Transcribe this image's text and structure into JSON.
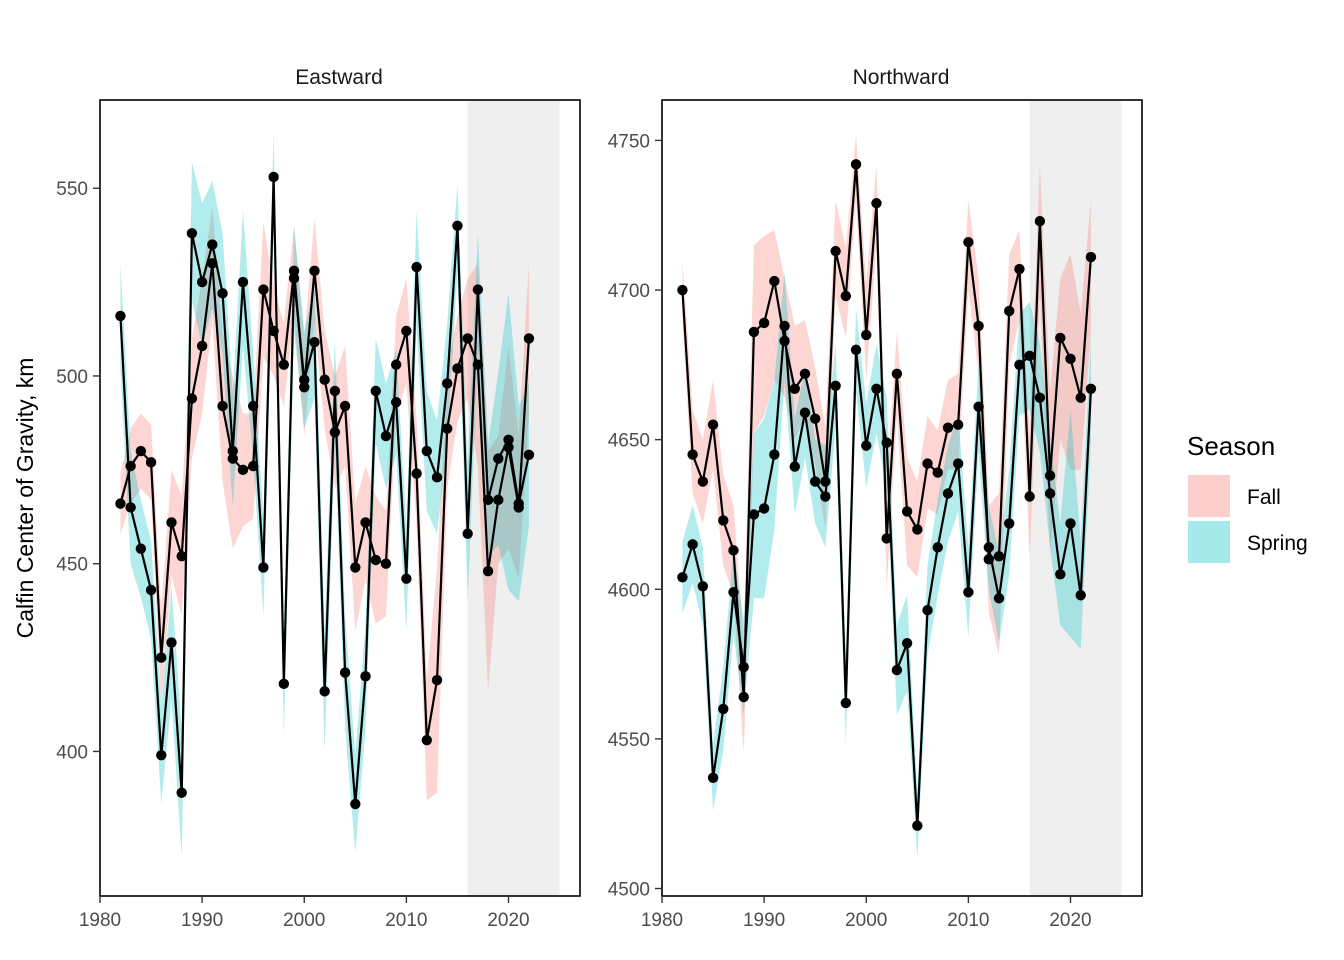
{
  "chart_data": {
    "type": "line",
    "ylabel": "Calfin Center of Gravity, km",
    "legend": {
      "title": "Season",
      "placement": "right",
      "entries": [
        {
          "name": "Fall",
          "color": "#F8766D"
        },
        {
          "name": "Spring",
          "color": "#00BFC4"
        }
      ]
    },
    "colors": {
      "fall": "#F8766D",
      "spring": "#00BFC4",
      "line": "#000000",
      "shade": "#EFEFEF"
    },
    "panels": [
      {
        "title": "Eastward",
        "xlim": [
          1980,
          2027
        ],
        "ylim": [
          361.5,
          573.5
        ],
        "xticks": [
          1980,
          1990,
          2000,
          2010,
          2020
        ],
        "yticks": [
          400,
          450,
          500,
          550
        ],
        "shade_range": [
          2016,
          2025
        ],
        "series": [
          {
            "name": "Fall",
            "x": [
              1982,
              1983,
              1984,
              1985,
              1986,
              1987,
              1988,
              1989,
              1990,
              1991,
              1992,
              1993,
              1994,
              1995,
              1996,
              1997,
              1998,
              1999,
              2000,
              2001,
              2002,
              2003,
              2004,
              2005,
              2006,
              2007,
              2008,
              2009,
              2010,
              2011,
              2012,
              2013,
              2014,
              2015,
              2016,
              2017,
              2018,
              2019,
              2020,
              2021,
              2022
            ],
            "y": [
              466,
              476,
              480,
              477,
              425,
              461,
              452,
              494,
              508,
              530,
              492,
              478,
              475,
              476,
              523,
              512,
              503,
              528,
              497,
              528,
              499,
              485,
              492,
              449,
              461,
              451,
              450,
              503,
              512,
              474,
              403,
              419,
              486,
              502,
              510,
              503,
              448,
              467,
              481,
              465,
              510
            ],
            "lower": [
              458,
              466,
              470,
              467,
              412,
              447,
              436,
              478,
              490,
              515,
              472,
              454,
              460,
              462,
              505,
              500,
              492,
              516,
              484,
              514,
              486,
              470,
              476,
              432,
              446,
              434,
              436,
              490,
              498,
              460,
              387,
              389,
              470,
              488,
              494,
              476,
              416,
              450,
              454,
              446,
              490
            ],
            "upper": [
              474,
              486,
              490,
              487,
              438,
              475,
              468,
              510,
              526,
              545,
              512,
              500,
              490,
              490,
              541,
              524,
              514,
              540,
              510,
              542,
              512,
              500,
              508,
              466,
              476,
              468,
              464,
              516,
              526,
              488,
              419,
              449,
              502,
              516,
              526,
              530,
              480,
              484,
              508,
              484,
              530
            ]
          },
          {
            "name": "Spring",
            "x": [
              1982,
              1983,
              1984,
              1985,
              1986,
              1987,
              1988,
              1989,
              1990,
              1991,
              1992,
              1993,
              1994,
              1995,
              1996,
              1997,
              1998,
              1999,
              2000,
              2001,
              2002,
              2003,
              2004,
              2005,
              2006,
              2007,
              2008,
              2009,
              2010,
              2011,
              2012,
              2013,
              2014,
              2015,
              2016,
              2017,
              2018,
              2019,
              2020,
              2021,
              2022
            ],
            "y": [
              516,
              465,
              454,
              443,
              399,
              429,
              389,
              538,
              525,
              535,
              522,
              480,
              525,
              492,
              449,
              553,
              418,
              526,
              499,
              509,
              416,
              496,
              421,
              386,
              420,
              496,
              484,
              493,
              446,
              529,
              480,
              473,
              498,
              540,
              458,
              523,
              467,
              478,
              483,
              466,
              479
            ],
            "lower": [
              502,
              450,
              441,
              430,
              386,
              414,
              372,
              520,
              508,
              518,
              506,
              465,
              508,
              478,
              436,
              540,
              404,
              512,
              486,
              494,
              400,
              482,
              406,
              373,
              406,
              482,
              470,
              479,
              432,
              514,
              464,
              458,
              482,
              528,
              440,
              508,
              452,
              455,
              443,
              440,
              460
            ],
            "upper": [
              530,
              480,
              467,
              456,
              412,
              444,
              406,
              557,
              546,
              552,
              538,
              495,
              544,
              506,
              462,
              565,
              432,
              540,
              512,
              524,
              432,
              510,
              436,
              399,
              434,
              510,
              498,
              507,
              460,
              544,
              496,
              488,
              514,
              551,
              476,
              538,
              482,
              501,
              522,
              492,
              498
            ]
          }
        ]
      },
      {
        "title": "Northward",
        "xlim": [
          1980,
          2027
        ],
        "ylim": [
          4497.5,
          4763.5
        ],
        "xticks": [
          1980,
          1990,
          2000,
          2010,
          2020
        ],
        "yticks": [
          4500,
          4550,
          4600,
          4650,
          4700,
          4750
        ],
        "shade_range": [
          2016,
          2025
        ],
        "series": [
          {
            "name": "Fall",
            "x": [
              1982,
              1983,
              1984,
              1985,
              1986,
              1987,
              1988,
              1989,
              1990,
              1991,
              1992,
              1993,
              1994,
              1995,
              1996,
              1997,
              1998,
              1999,
              2000,
              2001,
              2002,
              2003,
              2004,
              2005,
              2006,
              2007,
              2008,
              2009,
              2010,
              2011,
              2012,
              2013,
              2014,
              2015,
              2016,
              2017,
              2018,
              2019,
              2020,
              2021,
              2022
            ],
            "y": [
              4700,
              4645,
              4636,
              4655,
              4623,
              4613,
              4564,
              4686,
              4689,
              4703,
              4683,
              4667,
              4672,
              4657,
              4636,
              4713,
              4698,
              4742,
              4685,
              4729,
              4617,
              4672,
              4626,
              4620,
              4642,
              4639,
              4654,
              4655,
              4716,
              4688,
              4610,
              4611,
              4693,
              4707,
              4631,
              4723,
              4638,
              4684,
              4677,
              4664,
              4711
            ],
            "lower": [
              4690,
              4632,
              4622,
              4640,
              4608,
              4598,
              4545,
              4652,
              4658,
              4670,
              4664,
              4650,
              4658,
              4642,
              4620,
              4698,
              4684,
              4730,
              4670,
              4714,
              4600,
              4658,
              4608,
              4604,
              4627,
              4625,
              4640,
              4640,
              4700,
              4672,
              4592,
              4578,
              4675,
              4690,
              4610,
              4698,
              4612,
              4650,
              4640,
              4640,
              4686
            ],
            "upper": [
              4710,
              4660,
              4650,
              4670,
              4638,
              4628,
              4583,
              4715,
              4718,
              4720,
              4704,
              4688,
              4690,
              4674,
              4654,
              4730,
              4714,
              4752,
              4702,
              4742,
              4636,
              4686,
              4644,
              4636,
              4658,
              4653,
              4670,
              4672,
              4730,
              4704,
              4628,
              4632,
              4712,
              4720,
              4652,
              4742,
              4666,
              4704,
              4712,
              4692,
              4730
            ]
          },
          {
            "name": "Spring",
            "x": [
              1982,
              1983,
              1984,
              1985,
              1986,
              1987,
              1988,
              1989,
              1990,
              1991,
              1992,
              1993,
              1994,
              1995,
              1996,
              1997,
              1998,
              1999,
              2000,
              2001,
              2002,
              2003,
              2004,
              2005,
              2006,
              2007,
              2008,
              2009,
              2010,
              2011,
              2012,
              2013,
              2014,
              2015,
              2016,
              2017,
              2018,
              2019,
              2020,
              2021,
              2022
            ],
            "y": [
              4604,
              4615,
              4601,
              4537,
              4560,
              4599,
              4574,
              4625,
              4627,
              4645,
              4688,
              4641,
              4659,
              4636,
              4631,
              4668,
              4562,
              4680,
              4648,
              4667,
              4649,
              4573,
              4582,
              4521,
              4593,
              4614,
              4632,
              4642,
              4599,
              4661,
              4614,
              4597,
              4622,
              4675,
              4678,
              4664,
              4632,
              4605,
              4622,
              4598,
              4667
            ],
            "lower": [
              4592,
              4602,
              4588,
              4526,
              4546,
              4585,
              4558,
              4597,
              4597,
              4620,
              4670,
              4625,
              4644,
              4622,
              4614,
              4654,
              4548,
              4666,
              4634,
              4652,
              4634,
              4558,
              4566,
              4510,
              4578,
              4598,
              4616,
              4626,
              4584,
              4646,
              4600,
              4582,
              4605,
              4658,
              4660,
              4646,
              4614,
              4588,
              4584,
              4580,
              4650
            ],
            "upper": [
              4616,
              4628,
              4614,
              4548,
              4574,
              4613,
              4590,
              4652,
              4657,
              4670,
              4706,
              4657,
              4674,
              4650,
              4648,
              4682,
              4576,
              4694,
              4662,
              4682,
              4664,
              4588,
              4598,
              4532,
              4608,
              4630,
              4648,
              4658,
              4614,
              4676,
              4628,
              4612,
              4640,
              4692,
              4696,
              4682,
              4650,
              4622,
              4660,
              4616,
              4684
            ]
          }
        ]
      }
    ]
  }
}
